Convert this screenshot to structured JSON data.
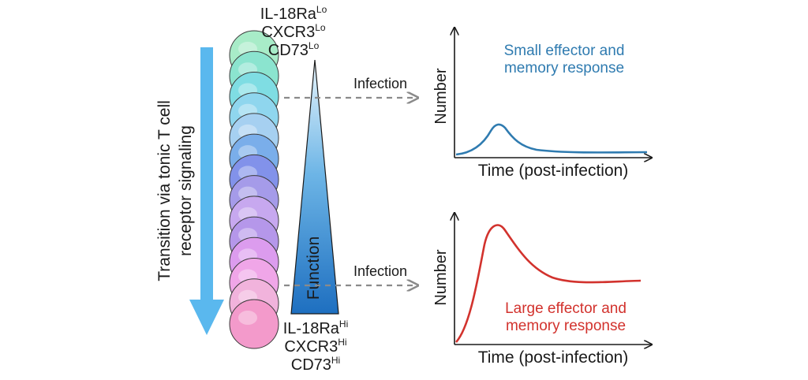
{
  "transition_label": {
    "line1": "Transition via tonic T cell",
    "line2": "receptor signaling"
  },
  "top_markers": [
    {
      "name": "IL-18Ra",
      "sup": "Lo"
    },
    {
      "name": "CXCR3",
      "sup": "Lo"
    },
    {
      "name": "CD73",
      "sup": "Lo"
    }
  ],
  "bottom_markers": [
    {
      "name": "IL-18Ra",
      "sup": "Hi"
    },
    {
      "name": "CXCR3",
      "sup": "Hi"
    },
    {
      "name": "CD73",
      "sup": "Hi"
    }
  ],
  "function_label": "Function",
  "infection_labels": {
    "top": "Infection",
    "bottom": "Infection"
  },
  "cells": {
    "count": 14,
    "colors": [
      "#a8ecc8",
      "#8be4cf",
      "#7fdde3",
      "#8fd6ee",
      "#a6d0f1",
      "#7aaeea",
      "#8292ea",
      "#a59be9",
      "#c7a8ef",
      "#b597ea",
      "#dc9cee",
      "#f0a6e8",
      "#f1b3dc",
      "#f39acb"
    ]
  },
  "colors": {
    "arrow": "#5ab8ee",
    "small_response": "#2f7bb0",
    "large_response": "#d2322d",
    "dashed": "#8a8a8a"
  },
  "charts": {
    "top": {
      "ylabel": "Number",
      "xlabel": "Time (post-infection)",
      "caption": [
        "Small effector and",
        "memory response"
      ]
    },
    "bottom": {
      "ylabel": "Number",
      "xlabel": "Time (post-infection)",
      "caption": [
        "Large effector and",
        "memory response"
      ]
    }
  }
}
